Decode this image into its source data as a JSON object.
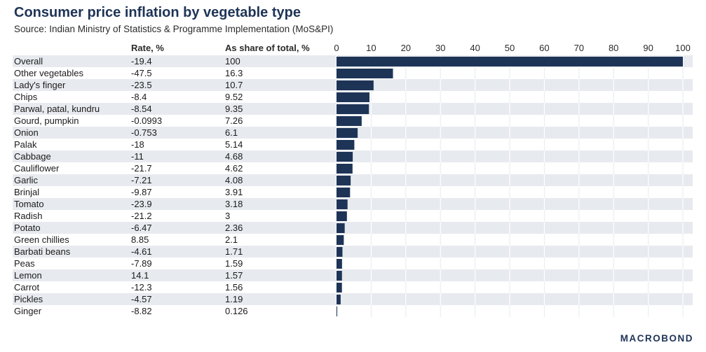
{
  "title": "Consumer price inflation by vegetable type",
  "subtitle": "Source: Indian Ministry of Statistics & Programme Implementation (MoS&PI)",
  "columns": {
    "rate": "Rate, %",
    "share": "As share of total, %"
  },
  "logo": "MACROBOND",
  "colors": {
    "bar": "#1e3457",
    "stripe": "#e7eaee",
    "title": "#1e3457"
  },
  "chart_data": {
    "type": "bar",
    "orientation": "horizontal",
    "title": "Consumer price inflation by vegetable type",
    "subtitle": "Source: Indian Ministry of Statistics & Programme Implementation (MoS&PI)",
    "xlim": [
      0,
      100
    ],
    "xticks": [
      0,
      10,
      20,
      30,
      40,
      50,
      60,
      70,
      80,
      90,
      100
    ],
    "grid": true,
    "categories": [
      "Overall",
      "Other vegetables",
      "Lady's finger",
      "Chips",
      "Parwal, patal, kundru",
      "Gourd, pumpkin",
      "Onion",
      "Palak",
      "Cabbage",
      "Cauliflower",
      "Garlic",
      "Brinjal",
      "Tomato",
      "Radish",
      "Potato",
      "Green chillies",
      "Barbati beans",
      "Peas",
      "Lemon",
      "Carrot",
      "Pickles",
      "Ginger"
    ],
    "rate": [
      "-19.4",
      "-47.5",
      "-23.5",
      "-8.4",
      "-8.54",
      "-0.0993",
      "-0.753",
      "-18",
      "-11",
      "-21.7",
      "-7.21",
      "-9.87",
      "-23.9",
      "-21.2",
      "-6.47",
      "8.85",
      "-4.61",
      "-7.89",
      "14.1",
      "-12.3",
      "-4.57",
      "-8.82"
    ],
    "share": [
      "100",
      "16.3",
      "10.7",
      "9.52",
      "9.35",
      "7.26",
      "6.1",
      "5.14",
      "4.68",
      "4.62",
      "4.08",
      "3.91",
      "3.18",
      "3",
      "2.36",
      "2.1",
      "1.71",
      "1.59",
      "1.57",
      "1.56",
      "1.19",
      "0.126"
    ],
    "series": [
      {
        "name": "As share of total, %",
        "values": [
          100,
          16.3,
          10.7,
          9.52,
          9.35,
          7.26,
          6.1,
          5.14,
          4.68,
          4.62,
          4.08,
          3.91,
          3.18,
          3,
          2.36,
          2.1,
          1.71,
          1.59,
          1.57,
          1.56,
          1.19,
          0.126
        ]
      }
    ]
  }
}
